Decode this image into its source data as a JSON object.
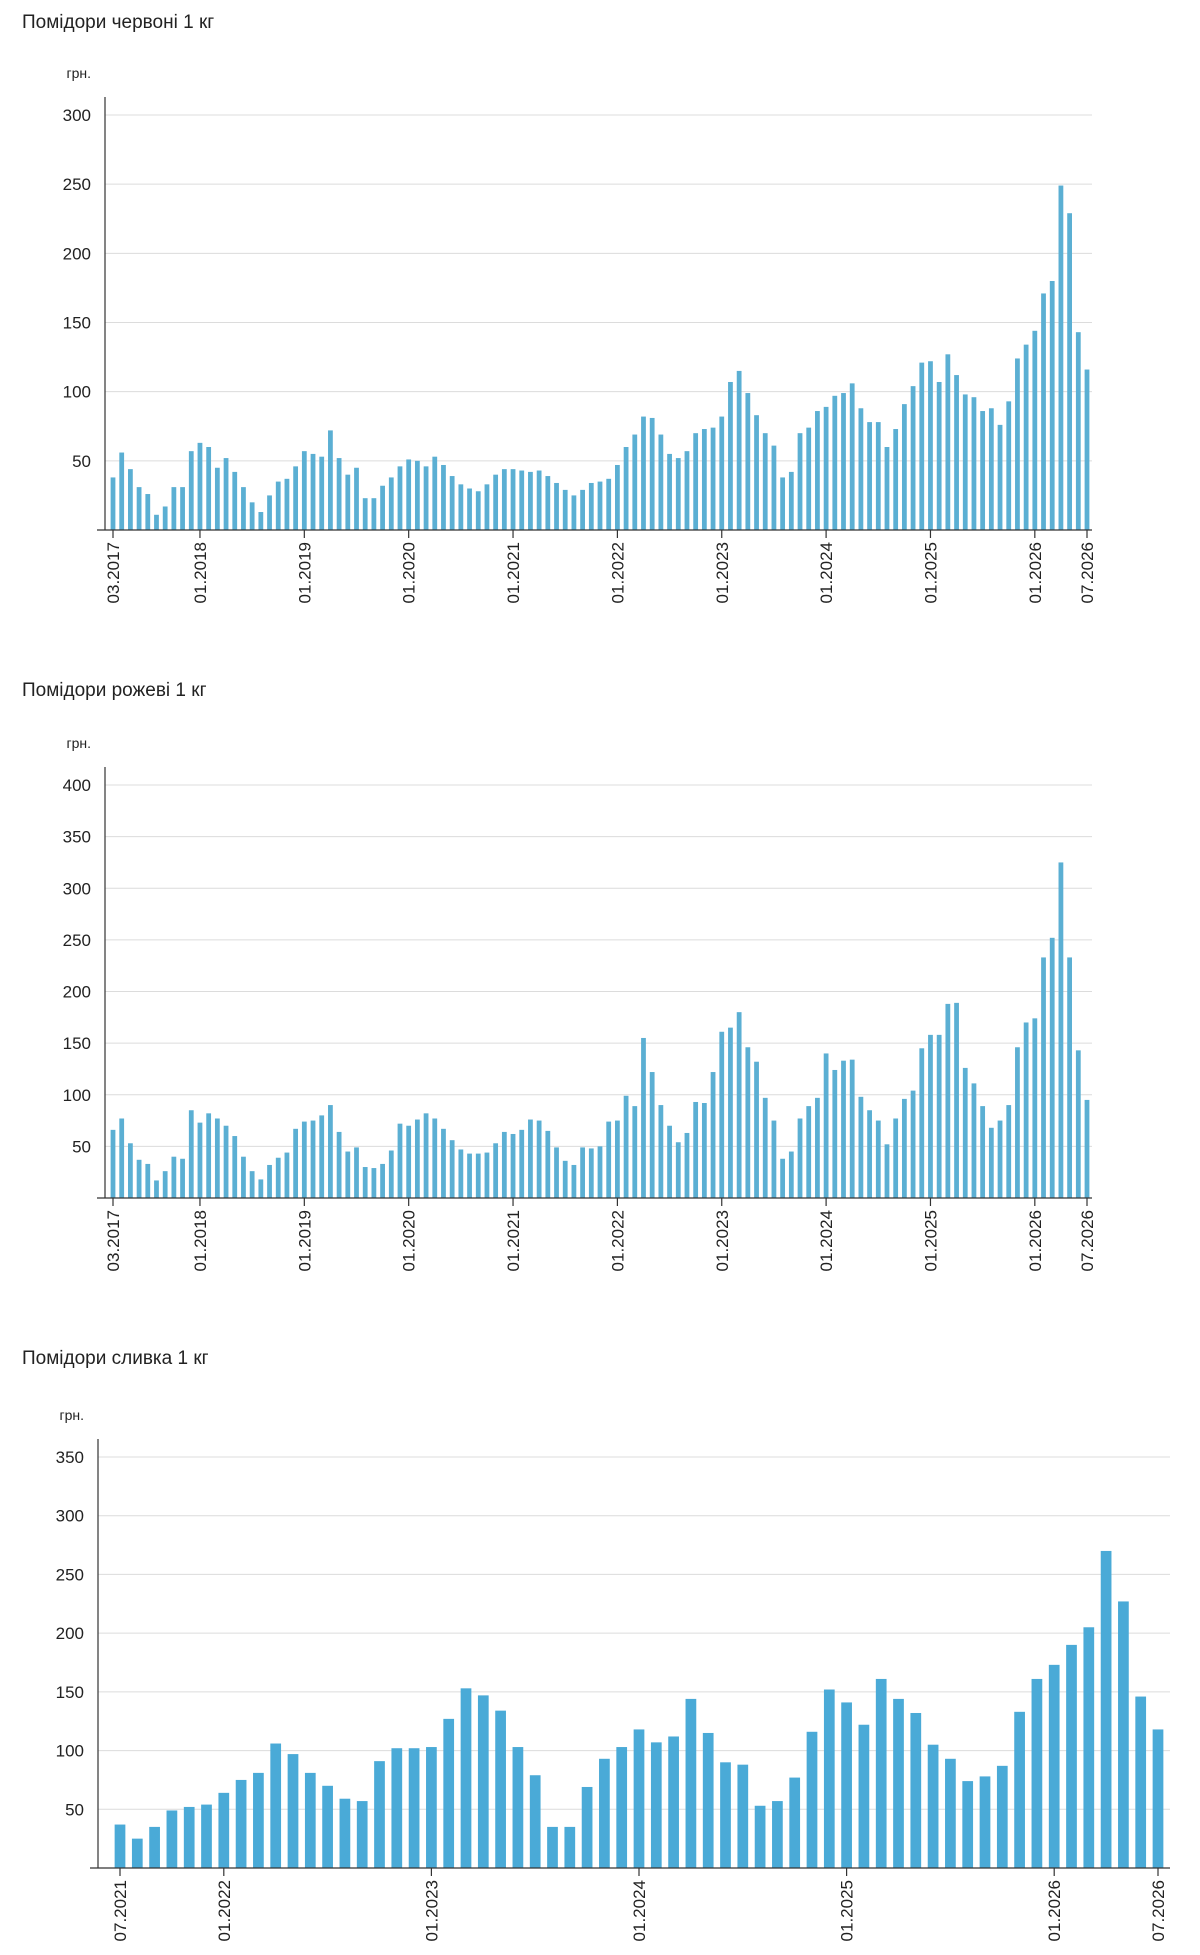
{
  "chart_data": [
    {
      "type": "bar",
      "title": "Помідори червоні 1 кг",
      "ylabel": "грн.",
      "ylim": [
        0,
        300
      ],
      "yticks": [
        50,
        100,
        150,
        200,
        250,
        300
      ],
      "x_start": "03.2017",
      "x_tick_labels": [
        "03.2017",
        "01.2018",
        "01.2019",
        "01.2020",
        "01.2021",
        "01.2022",
        "01.2023",
        "01.2024",
        "01.2025",
        "01.2026",
        "07.2026"
      ],
      "grid": true,
      "color": "#5bafd3",
      "values": [
        38,
        56,
        44,
        31,
        26,
        11,
        17,
        31,
        31,
        57,
        63,
        60,
        45,
        52,
        42,
        31,
        20,
        13,
        25,
        35,
        37,
        46,
        57,
        55,
        53,
        72,
        52,
        40,
        45,
        23,
        23,
        32,
        38,
        46,
        51,
        50,
        46,
        53,
        47,
        39,
        33,
        30,
        28,
        33,
        40,
        44,
        44,
        43,
        42,
        43,
        39,
        34,
        29,
        25,
        29,
        34,
        35,
        37,
        47,
        60,
        69,
        82,
        81,
        69,
        55,
        52,
        57,
        70,
        73,
        74,
        82,
        107,
        115,
        99,
        83,
        70,
        61,
        38,
        42,
        70,
        74,
        86,
        89,
        97,
        99,
        106,
        88,
        78,
        78,
        60,
        73,
        91,
        104,
        121,
        122,
        107,
        127,
        112,
        98,
        96,
        86,
        88,
        76,
        93,
        124,
        134,
        144,
        171,
        180,
        249,
        229,
        143,
        116
      ]
    },
    {
      "type": "bar",
      "title": "Помідори рожеві 1 кг",
      "ylabel": "грн.",
      "ylim": [
        0,
        400
      ],
      "yticks": [
        50,
        100,
        150,
        200,
        250,
        300,
        350,
        400
      ],
      "x_start": "03.2017",
      "x_tick_labels": [
        "03.2017",
        "01.2018",
        "01.2019",
        "01.2020",
        "01.2021",
        "01.2022",
        "01.2023",
        "01.2024",
        "01.2025",
        "01.2026",
        "07.2026"
      ],
      "grid": true,
      "color": "#5bafd3",
      "values": [
        66,
        77,
        53,
        37,
        33,
        17,
        26,
        40,
        38,
        85,
        73,
        82,
        77,
        70,
        60,
        40,
        26,
        18,
        32,
        39,
        44,
        67,
        74,
        75,
        80,
        90,
        64,
        45,
        49,
        30,
        29,
        33,
        46,
        72,
        70,
        76,
        82,
        77,
        67,
        56,
        47,
        43,
        43,
        44,
        53,
        64,
        62,
        66,
        76,
        75,
        65,
        49,
        36,
        32,
        49,
        48,
        50,
        74,
        75,
        99,
        89,
        155,
        122,
        90,
        70,
        54,
        63,
        93,
        92,
        122,
        161,
        165,
        180,
        146,
        132,
        97,
        75,
        38,
        45,
        77,
        89,
        97,
        140,
        124,
        133,
        134,
        98,
        85,
        75,
        52,
        77,
        96,
        104,
        145,
        158,
        158,
        188,
        189,
        126,
        111,
        89,
        68,
        75,
        90,
        146,
        170,
        174,
        233,
        252,
        325,
        233,
        143,
        95
      ]
    },
    {
      "type": "bar",
      "title": "Помідори сливка 1 кг",
      "ylabel": "грн.",
      "ylim": [
        0,
        350
      ],
      "yticks": [
        50,
        100,
        150,
        200,
        250,
        300,
        350
      ],
      "x_start": "07.2021",
      "x_tick_labels": [
        "07.2021",
        "01.2022",
        "01.2023",
        "01.2024",
        "01.2025",
        "01.2026",
        "07.2026"
      ],
      "grid": true,
      "color": "#4aaad7",
      "values": [
        37,
        25,
        35,
        49,
        52,
        54,
        64,
        75,
        81,
        106,
        97,
        81,
        70,
        59,
        57,
        91,
        102,
        102,
        103,
        127,
        153,
        147,
        134,
        103,
        79,
        35,
        35,
        69,
        93,
        103,
        118,
        107,
        112,
        144,
        115,
        90,
        88,
        53,
        57,
        77,
        116,
        152,
        141,
        122,
        161,
        144,
        132,
        105,
        93,
        74,
        78,
        87,
        133,
        161,
        173,
        190,
        205,
        270,
        227,
        146,
        118
      ]
    }
  ]
}
